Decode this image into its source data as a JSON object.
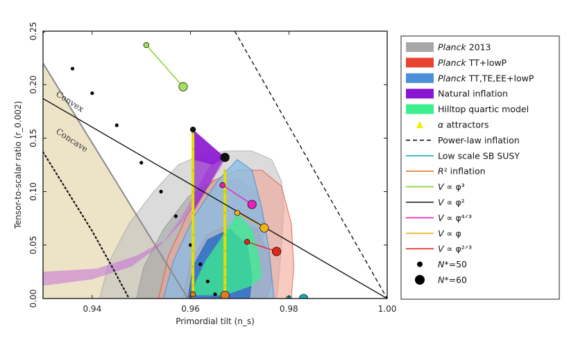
{
  "chart_data": {
    "type": "scatter",
    "xlabel": "Primordial tilt (n_s)",
    "ylabel": "Tensor-to-scalar ratio (r_0.002)",
    "xlim": [
      0.93,
      1.0
    ],
    "ylim": [
      0.0,
      0.25
    ],
    "x_ticks": [
      "0.94",
      "0.96",
      "0.98",
      "1.00"
    ],
    "x_tick_values": [
      0.94,
      0.96,
      0.98,
      1.0
    ],
    "y_ticks": [
      "0.00",
      "0.05",
      "0.10",
      "0.15",
      "0.20",
      "0.25"
    ],
    "y_tick_values": [
      0.0,
      0.05,
      0.1,
      0.15,
      0.2,
      0.25
    ],
    "annotations": [
      {
        "text": "Convex",
        "x": 0.9325,
        "y": 0.19,
        "angle": 33
      },
      {
        "text": "Concave",
        "x": 0.9325,
        "y": 0.155,
        "angle": 33
      }
    ],
    "regions": {
      "concave_region": [
        [
          0.93,
          0.0
        ],
        [
          0.93,
          0.22
        ],
        [
          0.9595,
          0.0
        ]
      ],
      "planck2013_95": [
        [
          0.9415,
          0.0
        ],
        [
          0.9435,
          0.035
        ],
        [
          0.9475,
          0.07
        ],
        [
          0.9525,
          0.1
        ],
        [
          0.9575,
          0.125
        ],
        [
          0.9625,
          0.135
        ],
        [
          0.9675,
          0.138
        ],
        [
          0.9725,
          0.138
        ],
        [
          0.9765,
          0.13
        ],
        [
          0.9785,
          0.11
        ],
        [
          0.979,
          0.085
        ],
        [
          0.9785,
          0.05
        ],
        [
          0.978,
          0.02
        ],
        [
          0.9775,
          0.0
        ]
      ],
      "planck2013_68": [
        [
          0.949,
          0.0
        ],
        [
          0.9505,
          0.03
        ],
        [
          0.9545,
          0.065
        ],
        [
          0.9595,
          0.095
        ],
        [
          0.9645,
          0.11
        ],
        [
          0.9695,
          0.112
        ],
        [
          0.9735,
          0.1
        ],
        [
          0.975,
          0.07
        ],
        [
          0.9745,
          0.035
        ],
        [
          0.9735,
          0.0
        ]
      ],
      "tt_lowp_95": [
        [
          0.9535,
          0.0
        ],
        [
          0.9555,
          0.04
        ],
        [
          0.9595,
          0.08
        ],
        [
          0.9645,
          0.11
        ],
        [
          0.9695,
          0.12
        ],
        [
          0.9745,
          0.12
        ],
        [
          0.9785,
          0.105
        ],
        [
          0.9805,
          0.07
        ],
        [
          0.981,
          0.03
        ],
        [
          0.9805,
          0.0
        ]
      ],
      "tt_lowp_68": [
        [
          0.9585,
          0.0
        ],
        [
          0.96,
          0.035
        ],
        [
          0.9635,
          0.06
        ],
        [
          0.9685,
          0.07
        ],
        [
          0.9735,
          0.065
        ],
        [
          0.976,
          0.04
        ],
        [
          0.9765,
          0.015
        ],
        [
          0.9755,
          0.0
        ]
      ],
      "ttteee_95": [
        [
          0.9545,
          0.0
        ],
        [
          0.9565,
          0.035
        ],
        [
          0.9605,
          0.075
        ],
        [
          0.9655,
          0.11
        ],
        [
          0.9695,
          0.13
        ],
        [
          0.9725,
          0.12
        ],
        [
          0.9745,
          0.085
        ],
        [
          0.976,
          0.045
        ],
        [
          0.977,
          0.0
        ]
      ],
      "ttteee_68": [
        [
          0.9595,
          0.0
        ],
        [
          0.9605,
          0.03
        ],
        [
          0.9635,
          0.055
        ],
        [
          0.968,
          0.065
        ],
        [
          0.9715,
          0.05
        ],
        [
          0.9725,
          0.02
        ],
        [
          0.972,
          0.0
        ]
      ],
      "natural_band": [
        [
          0.93,
          0.012
        ],
        [
          0.94,
          0.018
        ],
        [
          0.948,
          0.03
        ],
        [
          0.954,
          0.05
        ],
        [
          0.958,
          0.075
        ],
        [
          0.961,
          0.1
        ],
        [
          0.964,
          0.125
        ],
        [
          0.967,
          0.133
        ],
        [
          0.9665,
          0.125
        ],
        [
          0.963,
          0.1
        ],
        [
          0.959,
          0.075
        ],
        [
          0.955,
          0.055
        ],
        [
          0.949,
          0.04
        ],
        [
          0.941,
          0.028
        ],
        [
          0.93,
          0.025
        ]
      ],
      "natural_upper": [
        [
          0.9605,
          0.158
        ],
        [
          0.967,
          0.132
        ],
        [
          0.9645,
          0.125
        ],
        [
          0.9605,
          0.13
        ]
      ],
      "natural_wedge": [
        [
          0.9605,
          0.158
        ],
        [
          0.9605,
          0.08
        ],
        [
          0.967,
          0.132
        ]
      ],
      "hilltop": [
        [
          0.9605,
          0.003
        ],
        [
          0.961,
          0.015
        ],
        [
          0.963,
          0.035
        ],
        [
          0.966,
          0.055
        ],
        [
          0.9695,
          0.08
        ],
        [
          0.9725,
          0.065
        ],
        [
          0.974,
          0.04
        ],
        [
          0.9745,
          0.02
        ],
        [
          0.9725,
          0.012
        ],
        [
          0.967,
          0.003
        ]
      ]
    },
    "series": [
      {
        "name": "Planck 2013",
        "kind": "region",
        "color": "#a8a8a8"
      },
      {
        "name": "Planck TT+lowP",
        "kind": "region",
        "color": "#e8432f"
      },
      {
        "name": "Planck TT,TE,EE+lowP",
        "kind": "region",
        "color": "#4a90d9"
      },
      {
        "name": "Natural inflation",
        "kind": "region",
        "color": "#8b15d1"
      },
      {
        "name": "Hilltop quartic model",
        "kind": "region",
        "color": "#3dee8f"
      },
      {
        "name": "α attractors",
        "kind": "markers",
        "color": "#e3e000",
        "points": [
          [
            0.9605,
            0.002
          ],
          [
            0.9605,
            0.006
          ],
          [
            0.9605,
            0.012
          ],
          [
            0.9605,
            0.02
          ],
          [
            0.9605,
            0.03
          ],
          [
            0.9605,
            0.045
          ],
          [
            0.9605,
            0.06
          ],
          [
            0.9605,
            0.08
          ],
          [
            0.9605,
            0.1
          ],
          [
            0.9605,
            0.12
          ],
          [
            0.9605,
            0.14
          ],
          [
            0.9605,
            0.155
          ],
          [
            0.967,
            0.002
          ],
          [
            0.967,
            0.006
          ],
          [
            0.967,
            0.012
          ],
          [
            0.967,
            0.02
          ],
          [
            0.967,
            0.03
          ],
          [
            0.967,
            0.045
          ],
          [
            0.967,
            0.06
          ],
          [
            0.967,
            0.08
          ],
          [
            0.967,
            0.1
          ],
          [
            0.967,
            0.12
          ]
        ]
      },
      {
        "name": "Power-law inflation",
        "kind": "line",
        "color": "#111111",
        "dash": "dashed",
        "points": [
          [
            0.969,
            0.25
          ],
          [
            1.0,
            0.0
          ]
        ]
      },
      {
        "name": "Low scale SB SUSY",
        "kind": "points",
        "color": "#1aa7b5",
        "points": [
          [
            0.98,
            0.0
          ],
          [
            0.983,
            0.0
          ]
        ]
      },
      {
        "name": "R^2 inflation",
        "kind": "points",
        "color": "#e07b25",
        "points": [
          [
            0.9605,
            0.004
          ],
          [
            0.967,
            0.003
          ]
        ]
      },
      {
        "name": "V ∝ φ^3",
        "kind": "segment",
        "color": "#7ed321",
        "points": [
          [
            0.951,
            0.237
          ],
          [
            0.9585,
            0.198
          ]
        ]
      },
      {
        "name": "V ∝ φ^2",
        "kind": "line",
        "color": "#111111",
        "points": [
          [
            0.93,
            0.187
          ],
          [
            1.0,
            0.0
          ]
        ]
      },
      {
        "name": "V ∝ φ^{4/3}",
        "kind": "segment",
        "color": "#e91eba",
        "points": [
          [
            0.9665,
            0.106
          ],
          [
            0.9725,
            0.088
          ]
        ]
      },
      {
        "name": "V ∝ φ",
        "kind": "segment",
        "color": "#f0b21a",
        "points": [
          [
            0.9695,
            0.08
          ],
          [
            0.975,
            0.066
          ]
        ]
      },
      {
        "name": "V ∝ φ^{2/3}",
        "kind": "segment",
        "color": "#e3261b",
        "points": [
          [
            0.9715,
            0.053
          ],
          [
            0.9775,
            0.044
          ]
        ]
      }
    ],
    "convex_concave_boundary": [
      [
        0.93,
        0.22
      ],
      [
        0.9595,
        0.0
      ]
    ],
    "n50_black_dotted": [
      [
        0.93,
        0.25
      ],
      [
        0.936,
        0.215
      ],
      [
        0.94,
        0.192
      ],
      [
        0.945,
        0.162
      ],
      [
        0.95,
        0.127
      ],
      [
        0.954,
        0.1
      ],
      [
        0.957,
        0.077
      ],
      [
        0.96,
        0.05
      ],
      [
        0.962,
        0.032
      ],
      [
        0.9635,
        0.016
      ],
      [
        0.965,
        0.004
      ]
    ],
    "concave_dotted": [
      [
        0.93,
        0.137
      ],
      [
        0.935,
        0.1
      ],
      [
        0.94,
        0.063
      ],
      [
        0.944,
        0.03
      ],
      [
        0.9475,
        0.0
      ]
    ],
    "legend": [
      {
        "label": "Planck 2013",
        "italic_prefix": "Planck",
        "rest": " 2013",
        "swatch": "patch",
        "color": "#a8a8a8"
      },
      {
        "label": "Planck TT+lowP",
        "italic_prefix": "Planck",
        "rest": " TT+lowP",
        "swatch": "patch",
        "color": "#e8432f"
      },
      {
        "label": "Planck TT,TE,EE+lowP",
        "italic_prefix": "Planck",
        "rest": " TT,TE,EE+lowP",
        "swatch": "patch",
        "color": "#4a90d9"
      },
      {
        "label": "Natural inflation",
        "italic_prefix": "",
        "rest": "Natural inflation",
        "swatch": "patch",
        "color": "#8b15d1"
      },
      {
        "label": "Hilltop quartic model",
        "italic_prefix": "",
        "rest": "Hilltop quartic model",
        "swatch": "patch",
        "color": "#3dee8f"
      },
      {
        "label": "α attractors",
        "italic_prefix": "α",
        "rest": " attractors",
        "swatch": "triangle",
        "color": "#f2ef00"
      },
      {
        "label": "Power-law inflation",
        "italic_prefix": "",
        "rest": "Power-law inflation",
        "swatch": "dash",
        "color": "#111111"
      },
      {
        "label": "Low scale SB SUSY",
        "italic_prefix": "",
        "rest": "Low scale SB SUSY",
        "swatch": "line",
        "color": "#1aa7b5"
      },
      {
        "label": "R² inflation",
        "italic_prefix": "R",
        "rest": "² inflation",
        "swatch": "line",
        "color": "#e07b25"
      },
      {
        "label": "V ∝ φ³",
        "italic_prefix": "V",
        "rest": " ∝ φ³",
        "swatch": "line",
        "color": "#7ed321"
      },
      {
        "label": "V ∝ φ²",
        "italic_prefix": "V",
        "rest": " ∝ φ²",
        "swatch": "line",
        "color": "#111111"
      },
      {
        "label": "V ∝ φ⁴ᐟ³",
        "italic_prefix": "V",
        "rest": " ∝ φ⁴ᐟ³",
        "swatch": "line",
        "color": "#e91eba"
      },
      {
        "label": "V ∝ φ",
        "italic_prefix": "V",
        "rest": " ∝ φ",
        "swatch": "line",
        "color": "#f0b21a"
      },
      {
        "label": "V ∝ φ²ᐟ³",
        "italic_prefix": "V",
        "rest": " ∝ φ²ᐟ³",
        "swatch": "line",
        "color": "#e3261b"
      },
      {
        "label": "N*=50",
        "italic_prefix": "N",
        "rest": "*=50",
        "swatch": "dot-small",
        "color": "#000000"
      },
      {
        "label": "N*=60",
        "italic_prefix": "N",
        "rest": "*=60",
        "swatch": "dot-large",
        "color": "#000000"
      }
    ],
    "endpoints": [
      {
        "series": "V ∝ φ^3",
        "x": 0.951,
        "y": 0.237,
        "n": 50,
        "color": "#a5e05a"
      },
      {
        "series": "V ∝ φ^3",
        "x": 0.9585,
        "y": 0.198,
        "n": 60,
        "color": "#a5e05a"
      },
      {
        "series": "V ∝ φ^2",
        "x": 0.9605,
        "y": 0.158,
        "n": 50,
        "color": "#111111"
      },
      {
        "series": "V ∝ φ^2",
        "x": 0.967,
        "y": 0.132,
        "n": 60,
        "color": "#111111"
      },
      {
        "series": "V ∝ φ^{4/3}",
        "x": 0.9665,
        "y": 0.106,
        "n": 50,
        "color": "#e91eba"
      },
      {
        "series": "V ∝ φ^{4/3}",
        "x": 0.9725,
        "y": 0.088,
        "n": 60,
        "color": "#e91eba"
      },
      {
        "series": "V ∝ φ",
        "x": 0.9695,
        "y": 0.08,
        "n": 50,
        "color": "#f0b21a"
      },
      {
        "series": "V ∝ φ",
        "x": 0.975,
        "y": 0.066,
        "n": 60,
        "color": "#f0b21a"
      },
      {
        "series": "V ∝ φ^{2/3}",
        "x": 0.9715,
        "y": 0.053,
        "n": 50,
        "color": "#e3261b"
      },
      {
        "series": "V ∝ φ^{2/3}",
        "x": 0.9775,
        "y": 0.044,
        "n": 60,
        "color": "#e3261b"
      },
      {
        "series": "R^2 inflation",
        "x": 0.9605,
        "y": 0.004,
        "n": 50,
        "color": "#e07b25"
      },
      {
        "series": "R^2 inflation",
        "x": 0.967,
        "y": 0.003,
        "n": 60,
        "color": "#e07b25"
      },
      {
        "series": "Low scale SB SUSY",
        "x": 0.98,
        "y": 0.0,
        "n": 50,
        "color": "#1aa7b5"
      },
      {
        "series": "Low scale SB SUSY",
        "x": 0.983,
        "y": 0.0,
        "n": 60,
        "color": "#1aa7b5"
      }
    ]
  }
}
